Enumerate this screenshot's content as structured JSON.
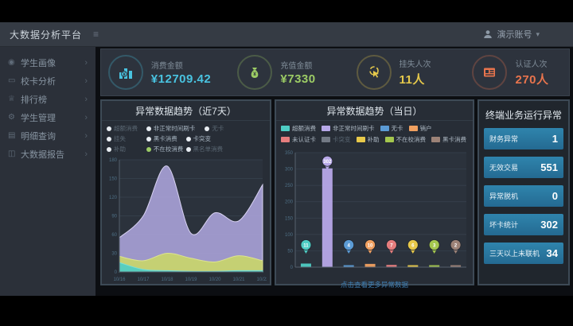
{
  "navbar": {
    "title": "大数据分析平台",
    "menu_icon": "≡",
    "user_label": "演示账号",
    "caret": "▾"
  },
  "sidebar": {
    "chevron": "›",
    "items": [
      {
        "label": "学生画像",
        "icon": "student-portrait-icon",
        "glyph": "◉"
      },
      {
        "label": "校卡分析",
        "icon": "card-analysis-icon",
        "glyph": "▭"
      },
      {
        "label": "排行榜",
        "icon": "ranking-icon",
        "glyph": "♕"
      },
      {
        "label": "学生管理",
        "icon": "student-manage-icon",
        "glyph": "⚙"
      },
      {
        "label": "明细查询",
        "icon": "detail-query-icon",
        "glyph": "▤"
      },
      {
        "label": "大数据报告",
        "icon": "bigdata-report-icon",
        "glyph": "◫"
      }
    ]
  },
  "kpis": [
    {
      "label": "消费金额",
      "value": "¥12709.42",
      "color": "#49c3e0",
      "icon": "consume-amount-icon"
    },
    {
      "label": "充值金额",
      "value": "¥7330",
      "color": "#9ccc65",
      "icon": "recharge-amount-icon"
    },
    {
      "label": "挂失人次",
      "value": "11人",
      "color": "#e5c84b",
      "icon": "loss-report-icon"
    },
    {
      "label": "认证人次",
      "value": "270人",
      "color": "#e8744d",
      "icon": "auth-count-icon"
    }
  ],
  "left_chart": {
    "title": "异常数据趋势（近7天）",
    "legend": [
      {
        "label": "超额消费",
        "dim": true
      },
      {
        "label": "非正常时间刷卡",
        "dim": false,
        "wide": true
      },
      {
        "label": "无卡",
        "dim": true
      },
      {
        "label": "挂失",
        "dim": true
      },
      {
        "label": "黑卡消费",
        "dim": false
      },
      {
        "label": "卡突变",
        "dim": false,
        "wide": true
      },
      {
        "label": "补助",
        "dim": true
      },
      {
        "label": "不在校消费",
        "dim": false,
        "active": true
      },
      {
        "label": "黑名单消费",
        "dim": true
      }
    ]
  },
  "mid_chart": {
    "title": "异常数据趋势（当日）",
    "legend": [
      {
        "label": "超额消费",
        "color": "#4ecdc4"
      },
      {
        "label": "非正常时间刷卡",
        "color": "#b7a8e8"
      },
      {
        "label": "无卡",
        "color": "#5b9bd5"
      },
      {
        "label": "销户",
        "color": "#f0a060"
      },
      {
        "label": "未认证卡",
        "color": "#e57d7d"
      },
      {
        "label": "卡突变",
        "color": "#737a85",
        "dim": true
      },
      {
        "label": "补助",
        "color": "#e8c94a"
      },
      {
        "label": "不在校消费",
        "color": "#a4c74e"
      },
      {
        "label": "黑卡消费",
        "color": "#9c8277"
      }
    ],
    "footer_link": "点击查看更多异常数据"
  },
  "right_panel": {
    "title": "终端业务运行异常",
    "items": [
      {
        "label": "财务异常",
        "value": "1"
      },
      {
        "label": "无效交易",
        "value": "551"
      },
      {
        "label": "异常脱机",
        "value": "0"
      },
      {
        "label": "坏卡统计",
        "value": "302"
      },
      {
        "label": "三天以上未联机",
        "value": "34"
      }
    ]
  },
  "chart_data": [
    {
      "type": "area",
      "title": "异常数据趋势（近7天）",
      "x": [
        "10/16",
        "10/17",
        "10/18",
        "10/19",
        "10/20",
        "10/21",
        "10/22"
      ],
      "series": [
        {
          "name": "非正常时间刷卡",
          "color": "#a79fd6",
          "stroke": "#d8d2f2",
          "values": [
            55,
            90,
            170,
            62,
            95,
            82,
            140
          ]
        },
        {
          "name": "不在校消费",
          "color": "#c9d56b",
          "stroke": "#dde48f",
          "values": [
            25,
            18,
            30,
            22,
            16,
            26,
            18
          ]
        },
        {
          "name": "超额消费",
          "color": "#4ecdc4",
          "stroke": "#7adfd8",
          "values": [
            15,
            4,
            2,
            1,
            1,
            2,
            2
          ]
        }
      ],
      "ylim": [
        0,
        180
      ],
      "ytick_step": 30,
      "grid": true,
      "legend_position": "top"
    },
    {
      "type": "bar",
      "title": "异常数据趋势（当日）",
      "categories": [
        "超额消费",
        "非正常时间刷卡",
        "无卡",
        "销户",
        "未认证卡",
        "补助",
        "不在校消费",
        "黑卡消费"
      ],
      "values": [
        11,
        302,
        4,
        10,
        7,
        6,
        3,
        2
      ],
      "colors": [
        "#4ecdc4",
        "#b7a8e8",
        "#5b9bd5",
        "#f0a060",
        "#e57d7d",
        "#e8c94a",
        "#a4c74e",
        "#9c8277"
      ],
      "ylim": [
        0,
        350
      ],
      "ytick_step": 50,
      "grid": true,
      "legend_position": "top"
    }
  ]
}
